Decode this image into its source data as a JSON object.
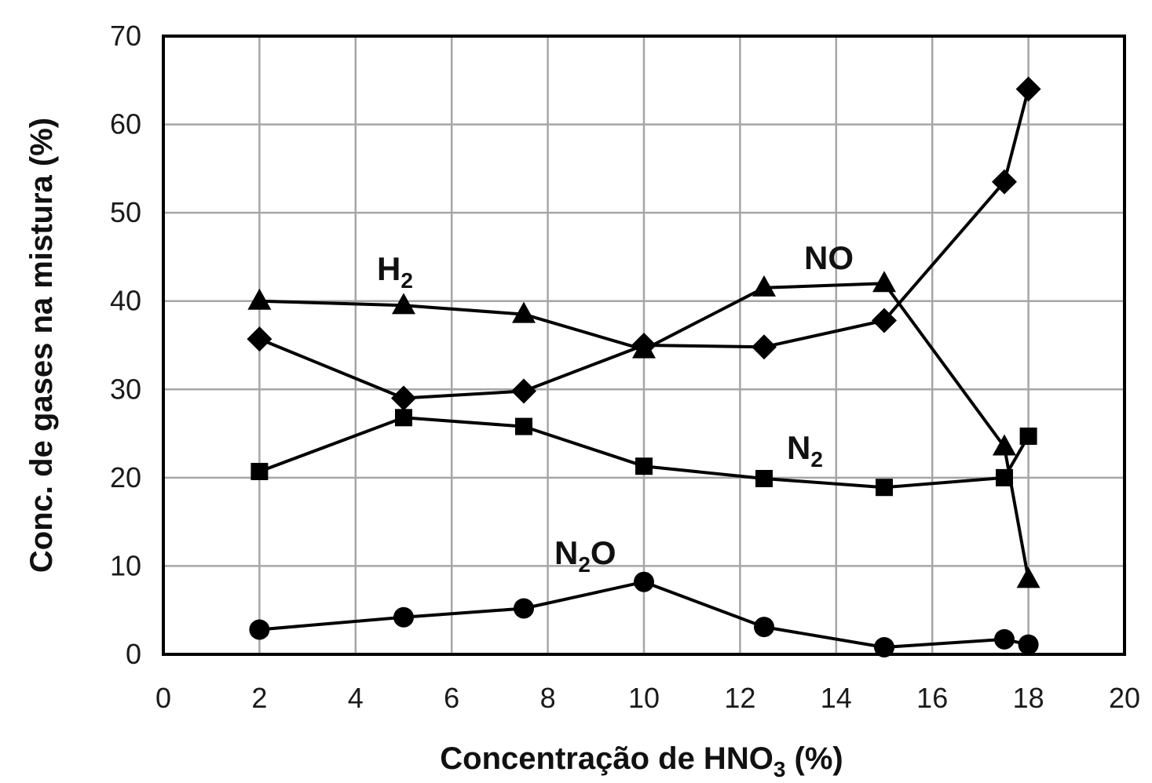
{
  "chart_data": {
    "type": "line",
    "xlabel": {
      "main": "Concentração de HNO",
      "sub": "3",
      "tail": " (%)"
    },
    "ylabel": "Conc. de gases na mistura (%)",
    "xlim": [
      0,
      20
    ],
    "ylim": [
      0,
      70
    ],
    "x_ticks": [
      "0",
      "2",
      "4",
      "6",
      "8",
      "10",
      "12",
      "14",
      "16",
      "18",
      "20"
    ],
    "y_ticks": [
      "0",
      "10",
      "20",
      "30",
      "40",
      "50",
      "60",
      "70"
    ],
    "grid": true,
    "series": [
      {
        "key": "h2",
        "label": {
          "main": "H",
          "sub": "2",
          "tail": ""
        },
        "marker": "triangle",
        "x": [
          2,
          5,
          7.5,
          10,
          12.5,
          15,
          17.5,
          18
        ],
        "y": [
          40,
          39.5,
          38.5,
          34.5,
          41.5,
          42,
          23.5,
          8.5
        ]
      },
      {
        "key": "no",
        "label": {
          "main": "NO",
          "sub": "",
          "tail": ""
        },
        "marker": "diamond",
        "x": [
          2,
          5,
          7.5,
          10,
          12.5,
          15,
          17.5,
          18
        ],
        "y": [
          35.7,
          29,
          29.8,
          35,
          34.8,
          37.8,
          53.5,
          64
        ]
      },
      {
        "key": "n2",
        "label": {
          "main": "N",
          "sub": "2",
          "tail": ""
        },
        "marker": "square",
        "x": [
          2,
          5,
          7.5,
          10,
          12.5,
          15,
          17.5,
          18
        ],
        "y": [
          20.7,
          26.8,
          25.8,
          21.3,
          19.9,
          18.9,
          20,
          24.7
        ]
      },
      {
        "key": "n2o",
        "label": {
          "main": "N",
          "sub": "2",
          "tail": "O"
        },
        "marker": "circle",
        "x": [
          2,
          5,
          7.5,
          10,
          12.5,
          15,
          17.5,
          18
        ],
        "y": [
          2.8,
          4.2,
          5.2,
          8.2,
          3.1,
          0.8,
          1.7,
          1.1
        ]
      }
    ]
  }
}
